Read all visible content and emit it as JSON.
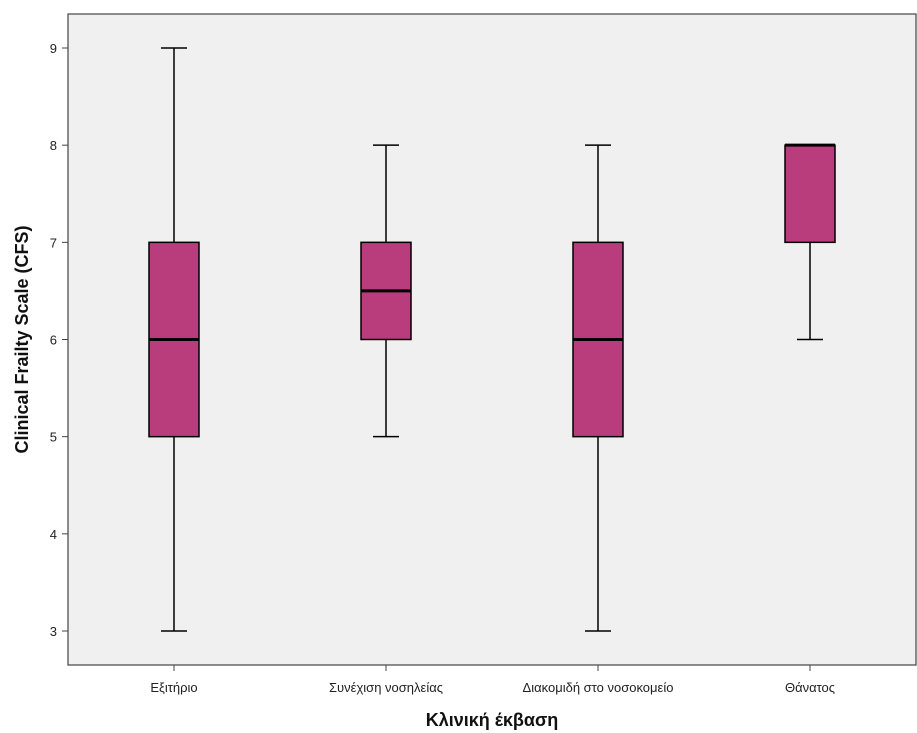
{
  "chart_data": {
    "type": "boxplot",
    "title": "",
    "xlabel": "Κλινική έκβαση",
    "ylabel": "Clinical Frailty Scale (CFS)",
    "ylim": [
      2.65,
      9.35
    ],
    "yticks": [
      3,
      4,
      5,
      6,
      7,
      8,
      9
    ],
    "categories": [
      "Εξιτήριο",
      "Συνέχιση νοσηλείας",
      "Διακομιδή στο νοσοκομείο",
      "Θάνατος"
    ],
    "boxes": [
      {
        "category": "Εξιτήριο",
        "min": 3,
        "q1": 5,
        "median": 6,
        "q3": 7,
        "max": 9
      },
      {
        "category": "Συνέχιση νοσηλείας",
        "min": 5,
        "q1": 6,
        "median": 6.5,
        "q3": 7,
        "max": 8
      },
      {
        "category": "Διακομιδή στο νοσοκομείο",
        "min": 3,
        "q1": 5,
        "median": 6,
        "q3": 7,
        "max": 8
      },
      {
        "category": "Θάνατος",
        "min": 6,
        "q1": 7,
        "median": 8,
        "q3": 8,
        "max": 8
      }
    ],
    "grid": false,
    "colors": {
      "box_fill": "#B93D7C",
      "plot_background": "#F0F0F0",
      "stroke": "#000000"
    }
  }
}
